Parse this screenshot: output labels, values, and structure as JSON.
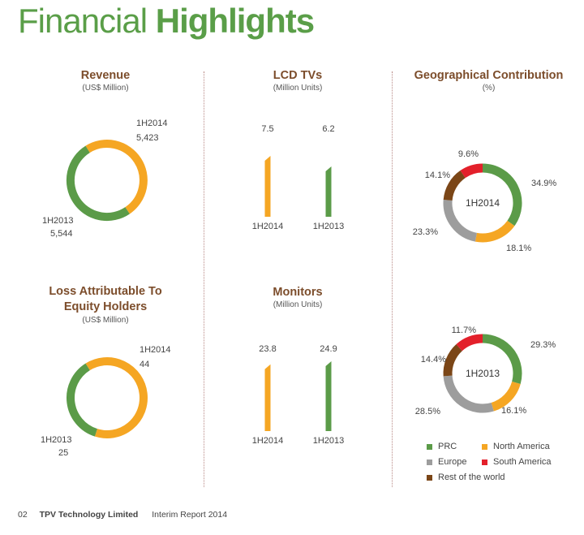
{
  "header": {
    "title_light": "Financial",
    "title_bold": "Highlights"
  },
  "sections": {
    "revenue": {
      "title": "Revenue",
      "subtitle": "(US$ Million)"
    },
    "lcd_tvs": {
      "title": "LCD TVs",
      "subtitle": "(Million Units)"
    },
    "geo": {
      "title": "Geographical Contribution",
      "subtitle": "(%)"
    },
    "loss": {
      "title": "Loss Attributable To Equity Holders",
      "subtitle": "(US$ Million)"
    },
    "monitors": {
      "title": "Monitors",
      "subtitle": "(Million Units)"
    }
  },
  "colors": {
    "green": "#5b9b48",
    "orange": "#f5a623",
    "gray": "#9d9d9d",
    "red": "#e3202b",
    "brown": "#7b4617"
  },
  "chart_data": [
    {
      "id": "revenue",
      "type": "pie",
      "title": "Revenue",
      "subtitle": "(US$ Million)",
      "categories": [
        "1H2014",
        "1H2013"
      ],
      "values": [
        5423,
        5544
      ],
      "value_labels": [
        "5,423",
        "5,544"
      ]
    },
    {
      "id": "lcd_tvs",
      "type": "bar",
      "title": "LCD TVs",
      "subtitle": "(Million Units)",
      "categories": [
        "1H2014",
        "1H2013"
      ],
      "values": [
        7.5,
        6.2
      ],
      "value_labels": [
        "7.5",
        "6.2"
      ]
    },
    {
      "id": "loss",
      "type": "pie",
      "title": "Loss Attributable To Equity Holders",
      "subtitle": "(US$ Million)",
      "categories": [
        "1H2014",
        "1H2013"
      ],
      "values": [
        44,
        25
      ],
      "value_labels": [
        "44",
        "25"
      ]
    },
    {
      "id": "monitors",
      "type": "bar",
      "title": "Monitors",
      "subtitle": "(Million Units)",
      "categories": [
        "1H2014",
        "1H2013"
      ],
      "values": [
        23.8,
        24.9
      ],
      "value_labels": [
        "23.8",
        "24.9"
      ]
    },
    {
      "id": "geo_2014",
      "type": "pie",
      "title": "Geographical Contribution",
      "subtitle": "(%)",
      "center_label": "1H2014",
      "categories": [
        "PRC",
        "North America",
        "Europe",
        "Rest of the world",
        "South America"
      ],
      "values": [
        34.9,
        18.1,
        23.3,
        14.1,
        9.6
      ],
      "value_labels": [
        "34.9%",
        "18.1%",
        "23.3%",
        "14.1%",
        "9.6%"
      ]
    },
    {
      "id": "geo_2013",
      "type": "pie",
      "center_label": "1H2013",
      "categories": [
        "PRC",
        "North America",
        "Europe",
        "Rest of the world",
        "South America"
      ],
      "values": [
        29.3,
        16.1,
        28.5,
        14.4,
        11.7
      ],
      "value_labels": [
        "29.3%",
        "16.1%",
        "28.5%",
        "14.4%",
        "11.7%"
      ]
    }
  ],
  "legend": [
    {
      "label": "PRC",
      "color": "#5b9b48"
    },
    {
      "label": "North America",
      "color": "#f5a623"
    },
    {
      "label": "Europe",
      "color": "#9d9d9d"
    },
    {
      "label": "South America",
      "color": "#e3202b"
    },
    {
      "label": "Rest of the world",
      "color": "#7b4617"
    }
  ],
  "footer": {
    "page": "02",
    "company": "TPV Technology Limited",
    "report": "Interim Report 2014"
  }
}
